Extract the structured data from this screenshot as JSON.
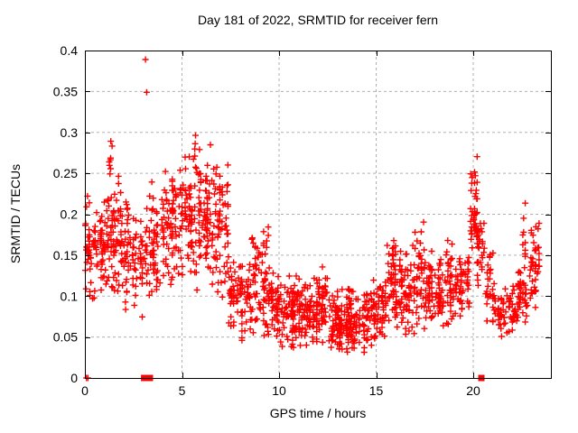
{
  "figure": {
    "background": "#ffffff"
  },
  "chart_data": {
    "type": "scatter",
    "title": "Day 181 of 2022, SRMTID for receiver fern",
    "xlabel": "GPS time / hours",
    "ylabel": "SRMTID / TECUs",
    "xlim": [
      0,
      24
    ],
    "ylim": [
      0,
      0.4
    ],
    "xticks": [
      0,
      5,
      10,
      15,
      20
    ],
    "xtick_labels": [
      "0",
      "5",
      "10",
      "15",
      "20"
    ],
    "yticks": [
      0,
      0.05,
      0.1,
      0.15,
      0.2,
      0.25,
      0.3,
      0.35,
      0.4
    ],
    "ytick_labels": [
      "0",
      "0.05",
      "0.1",
      "0.15",
      "0.2",
      "0.25",
      "0.3",
      "0.35",
      "0.4"
    ],
    "grid": true,
    "legend_visible": false,
    "marker": "plus",
    "colors": {
      "points": "#ff0000",
      "grid": "#b0b0b0",
      "axis": "#000000"
    },
    "seed": 20220181,
    "point_bands_format": [
      "x_start_hours",
      "x_end_hours",
      "count",
      "y_min_TECUs",
      "y_max_TECUs"
    ],
    "point_bands": [
      [
        0.02,
        0.5,
        40,
        0.09,
        0.24
      ],
      [
        0.5,
        1.0,
        44,
        0.1,
        0.24
      ],
      [
        1.0,
        1.5,
        42,
        0.09,
        0.26
      ],
      [
        1.25,
        1.45,
        8,
        0.24,
        0.305
      ],
      [
        1.5,
        2.0,
        42,
        0.08,
        0.27
      ],
      [
        2.0,
        2.5,
        38,
        0.075,
        0.25
      ],
      [
        2.5,
        3.0,
        32,
        0.07,
        0.21
      ],
      [
        3.0,
        3.5,
        28,
        0.08,
        0.26
      ],
      [
        3.5,
        4.0,
        32,
        0.09,
        0.25
      ],
      [
        4.0,
        4.5,
        38,
        0.1,
        0.28
      ],
      [
        4.5,
        5.0,
        42,
        0.1,
        0.31
      ],
      [
        5.0,
        5.5,
        46,
        0.11,
        0.3
      ],
      [
        5.5,
        6.0,
        46,
        0.1,
        0.32
      ],
      [
        6.0,
        6.5,
        46,
        0.1,
        0.31
      ],
      [
        6.5,
        7.0,
        46,
        0.1,
        0.3
      ],
      [
        7.0,
        7.4,
        30,
        0.08,
        0.3
      ],
      [
        7.4,
        8.0,
        38,
        0.05,
        0.17
      ],
      [
        8.0,
        8.5,
        38,
        0.04,
        0.17
      ],
      [
        8.5,
        9.0,
        38,
        0.05,
        0.2
      ],
      [
        9.0,
        9.5,
        40,
        0.04,
        0.21
      ],
      [
        9.5,
        10.0,
        40,
        0.04,
        0.15
      ],
      [
        10.0,
        11.0,
        80,
        0.03,
        0.14
      ],
      [
        11.0,
        12.0,
        85,
        0.03,
        0.13
      ],
      [
        12.0,
        12.5,
        42,
        0.03,
        0.15
      ],
      [
        12.5,
        13.5,
        85,
        0.025,
        0.12
      ],
      [
        13.5,
        14.5,
        85,
        0.025,
        0.12
      ],
      [
        14.5,
        15.0,
        40,
        0.03,
        0.13
      ],
      [
        15.0,
        15.5,
        42,
        0.04,
        0.14
      ],
      [
        15.5,
        16.0,
        42,
        0.04,
        0.2
      ],
      [
        16.0,
        16.5,
        40,
        0.04,
        0.18
      ],
      [
        16.5,
        17.0,
        40,
        0.05,
        0.18
      ],
      [
        17.0,
        17.5,
        40,
        0.05,
        0.21
      ],
      [
        17.5,
        18.0,
        40,
        0.05,
        0.17
      ],
      [
        18.0,
        18.5,
        40,
        0.05,
        0.16
      ],
      [
        18.5,
        19.0,
        38,
        0.06,
        0.18
      ],
      [
        19.0,
        19.5,
        34,
        0.06,
        0.16
      ],
      [
        19.5,
        19.8,
        18,
        0.08,
        0.18
      ],
      [
        19.8,
        20.2,
        42,
        0.12,
        0.29
      ],
      [
        20.2,
        20.6,
        30,
        0.1,
        0.21
      ],
      [
        20.6,
        21.2,
        34,
        0.06,
        0.17
      ],
      [
        21.2,
        22.3,
        65,
        0.045,
        0.12
      ],
      [
        22.3,
        22.8,
        34,
        0.06,
        0.14
      ],
      [
        22.55,
        22.9,
        12,
        0.1,
        0.23
      ],
      [
        22.9,
        23.3,
        30,
        0.07,
        0.21
      ],
      [
        23.15,
        23.4,
        12,
        0.09,
        0.23
      ]
    ],
    "outlier_points": [
      [
        3.12,
        0.389
      ],
      [
        3.18,
        0.349
      ]
    ],
    "baseline_plus_points": [
      [
        0.08,
        0
      ],
      [
        0.16,
        0
      ]
    ],
    "baseline_square_points": [
      [
        3.05,
        0
      ],
      [
        3.35,
        0
      ],
      [
        20.42,
        0
      ]
    ]
  }
}
